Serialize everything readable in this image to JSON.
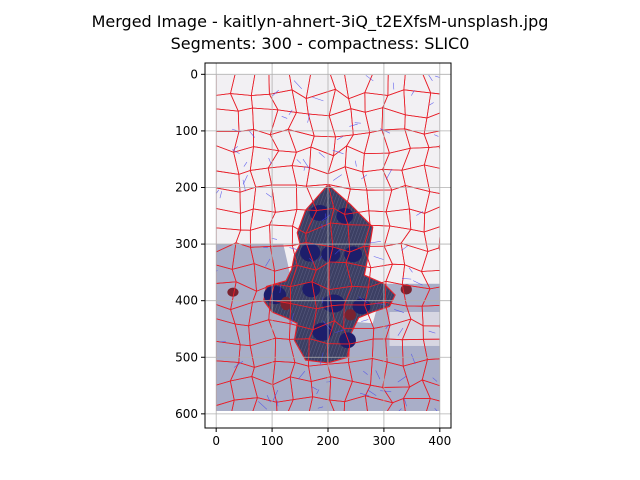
{
  "figure": {
    "title_line1": "Merged Image - kaitlyn-ahnert-3iQ_t2EXfsM-unsplash.jpg",
    "title_line2": "Segments: 300 - compactness: SLIC0"
  },
  "axes": {
    "x_ticks": [
      "0",
      "100",
      "200",
      "300",
      "400"
    ],
    "y_ticks": [
      "0",
      "100",
      "200",
      "300",
      "400",
      "500",
      "600"
    ],
    "xlim": [
      -20,
      420
    ],
    "ylim": [
      625,
      -20
    ],
    "grid": true
  },
  "image": {
    "width": 400,
    "height": 600,
    "subject": "dark hydrant-shaped silhouette on light background, segmented into superpixels",
    "colors": {
      "background_light": "#f2f0f3",
      "background_lower": "#a9aec8",
      "dark_object": "#3c3f63",
      "blob": "#1d1e6b",
      "maroon": "#7a2330",
      "segment_border": "#e8202a",
      "slic_lines": "#4444ee",
      "grid": "#b0b0b0"
    }
  }
}
